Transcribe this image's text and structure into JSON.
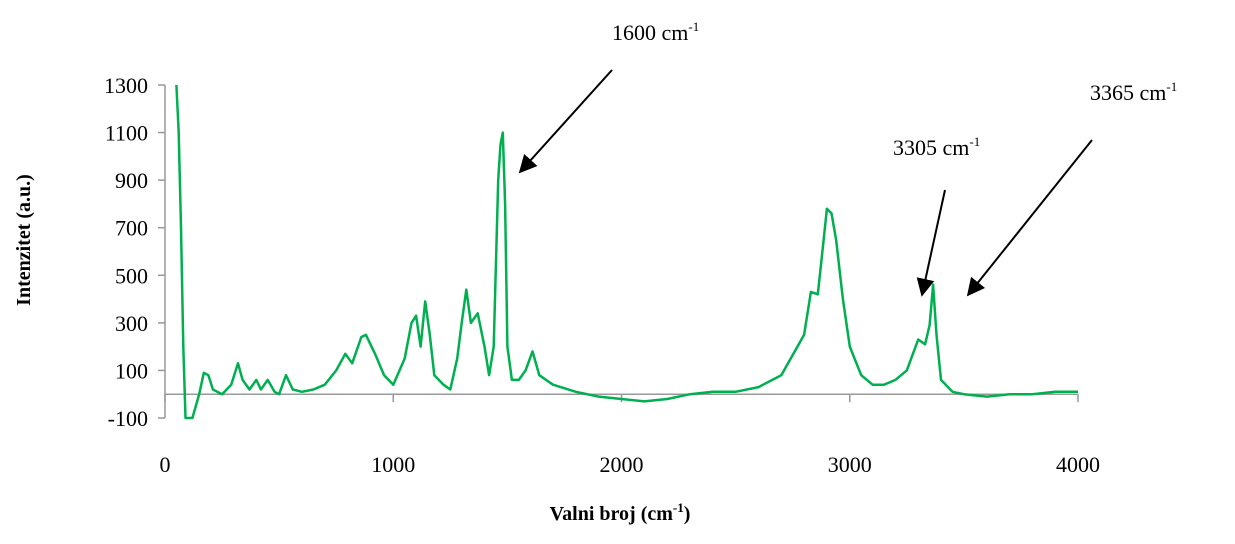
{
  "chart_data": {
    "type": "line",
    "y_label": "Intenzitet (a.u.)",
    "x_label": {
      "text": "Valni broj (cm",
      "sup": "-1",
      "end": ")"
    },
    "annotations": [
      {
        "text": "1600 cm",
        "sup": "-1"
      },
      {
        "text": "3305 cm",
        "sup": "-1"
      },
      {
        "text": "3365 cm",
        "sup": "-1"
      }
    ],
    "color": "#00b050",
    "xlim": [
      0,
      4000
    ],
    "xticks": [
      0,
      1000,
      2000,
      3000,
      4000
    ],
    "ylim": [
      -100,
      1300
    ],
    "yticks": [
      -100,
      100,
      300,
      500,
      700,
      900,
      1100,
      1300
    ],
    "x": [
      50,
      60,
      70,
      80,
      90,
      100,
      120,
      150,
      170,
      190,
      210,
      250,
      290,
      320,
      340,
      370,
      400,
      420,
      450,
      480,
      500,
      530,
      560,
      600,
      650,
      700,
      750,
      790,
      820,
      860,
      880,
      920,
      960,
      1000,
      1050,
      1080,
      1100,
      1120,
      1140,
      1160,
      1180,
      1220,
      1250,
      1280,
      1300,
      1320,
      1340,
      1370,
      1400,
      1420,
      1440,
      1460,
      1470,
      1480,
      1490,
      1500,
      1520,
      1550,
      1580,
      1610,
      1640,
      1700,
      1800,
      1900,
      2000,
      2100,
      2200,
      2300,
      2400,
      2500,
      2600,
      2700,
      2800,
      2830,
      2860,
      2880,
      2900,
      2920,
      2940,
      2970,
      3000,
      3050,
      3100,
      3150,
      3200,
      3250,
      3300,
      3330,
      3350,
      3365,
      3380,
      3400,
      3450,
      3500,
      3600,
      3700,
      3800,
      3900,
      4000
    ],
    "values": [
      1300,
      1100,
      700,
      200,
      -100,
      -100,
      -100,
      0,
      90,
      80,
      20,
      0,
      40,
      130,
      60,
      20,
      60,
      20,
      60,
      10,
      0,
      80,
      20,
      10,
      20,
      40,
      100,
      170,
      130,
      240,
      250,
      170,
      80,
      40,
      150,
      300,
      330,
      200,
      390,
      250,
      80,
      40,
      20,
      150,
      300,
      440,
      300,
      340,
      200,
      80,
      200,
      900,
      1050,
      1100,
      800,
      200,
      60,
      60,
      100,
      180,
      80,
      40,
      10,
      -10,
      -20,
      -30,
      -20,
      0,
      10,
      10,
      30,
      80,
      250,
      430,
      420,
      600,
      780,
      760,
      650,
      400,
      200,
      80,
      40,
      40,
      60,
      100,
      230,
      210,
      290,
      460,
      250,
      60,
      10,
      0,
      -10,
      0,
      0,
      10,
      10
    ]
  }
}
